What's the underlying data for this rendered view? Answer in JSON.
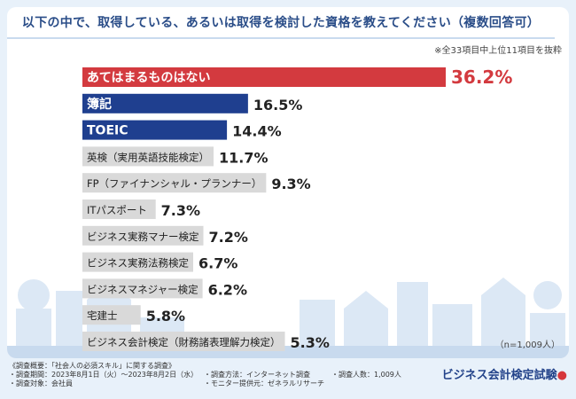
{
  "header": {
    "title": "以下の中で、取得している、あるいは取得を検討した資格を教えてください（複数回答可）",
    "note": "※全33項目中上位11項目を抜粋"
  },
  "chart_data": {
    "type": "bar",
    "orientation": "horizontal",
    "unit": "%",
    "categories": [
      "あてはまるものはない",
      "簿記",
      "TOEIC",
      "英検（実用英語技能検定）",
      "FP（ファイナンシャル・プランナー）",
      "ITパスポート",
      "ビジネス実務マナー検定",
      "ビジネス実務法務検定",
      "ビジネスマネジャー検定",
      "宅建士",
      "ビジネス会計検定（財務諸表理解力検定）"
    ],
    "values": [
      36.2,
      16.5,
      14.4,
      11.7,
      9.3,
      7.3,
      7.2,
      6.7,
      6.2,
      5.8,
      5.3
    ],
    "value_labels": [
      "36.2%",
      "16.5%",
      "14.4%",
      "11.7%",
      "9.3%",
      "7.3%",
      "7.2%",
      "6.7%",
      "6.2%",
      "5.8%",
      "5.3%"
    ],
    "bar_colors": [
      "#d33a3f",
      "#1f3f8f",
      "#1f3f8f",
      "#d9d9d9",
      "#d9d9d9",
      "#d9d9d9",
      "#d9d9d9",
      "#d9d9d9",
      "#d9d9d9",
      "#d9d9d9",
      "#d9d9d9"
    ],
    "label_colors": [
      "#ffffff",
      "#ffffff",
      "#ffffff",
      "#222222",
      "#222222",
      "#222222",
      "#222222",
      "#222222",
      "#222222",
      "#222222",
      "#222222"
    ],
    "value_colors": [
      "#d33a3f",
      "#222222",
      "#222222",
      "#222222",
      "#222222",
      "#222222",
      "#222222",
      "#222222",
      "#222222",
      "#222222",
      "#222222"
    ],
    "xlim": [
      0,
      36.2
    ]
  },
  "sample_size": "（n=1,009人）",
  "footer": {
    "lines_left": [
      "《調査概要：「社会人の必須スキル」に関する調査》",
      "・調査期間：2023年8月1日（火）～2023年8月2日（水）",
      "・調査対象：会社員"
    ],
    "lines_mid": [
      "・調査方法：インターネット調査",
      "・モニター提供元：ゼネラルリサーチ"
    ],
    "lines_right": [
      "・調査人数：1,009人"
    ]
  },
  "logo": {
    "text": "ビジネス会計検定試験",
    "mark": "●"
  }
}
